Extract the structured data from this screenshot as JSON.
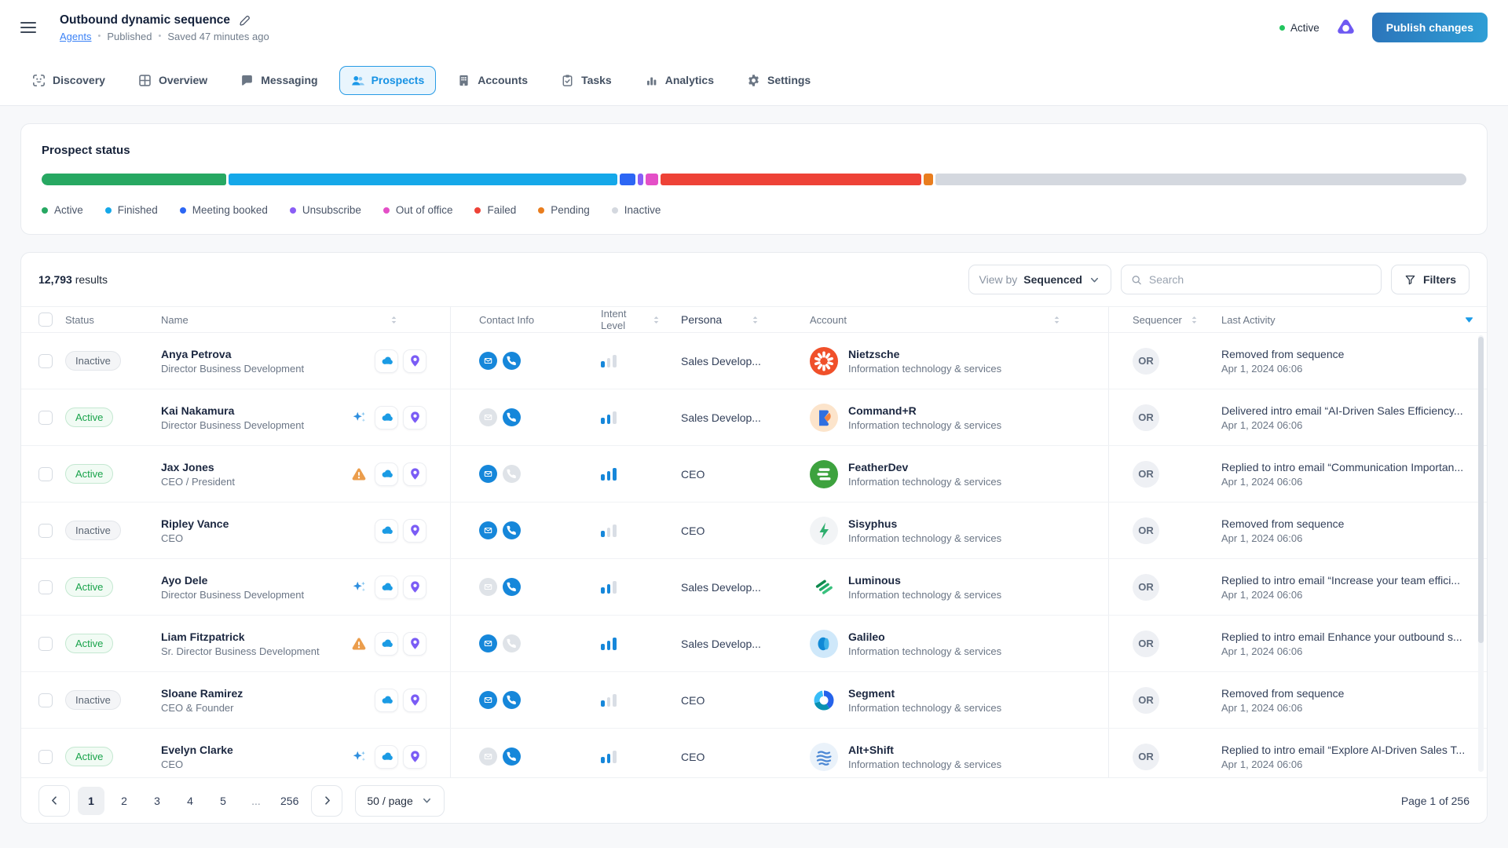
{
  "header": {
    "title": "Outbound dynamic sequence",
    "breadcrumb": {
      "link": "Agents",
      "sep": "•",
      "status": "Published",
      "saved": "Saved 47 minutes ago"
    },
    "agent_status": "Active",
    "publish_label": "Publish changes"
  },
  "tabs": [
    {
      "id": "discovery",
      "label": "Discovery",
      "active": false
    },
    {
      "id": "overview",
      "label": "Overview",
      "active": false
    },
    {
      "id": "messaging",
      "label": "Messaging",
      "active": false
    },
    {
      "id": "prospects",
      "label": "Prospects",
      "active": true
    },
    {
      "id": "accounts",
      "label": "Accounts",
      "active": false
    },
    {
      "id": "tasks",
      "label": "Tasks",
      "active": false
    },
    {
      "id": "analytics",
      "label": "Analytics",
      "active": false
    },
    {
      "id": "settings",
      "label": "Settings",
      "active": false
    }
  ],
  "prospect_status": {
    "title": "Prospect status",
    "segments": [
      {
        "label": "Active",
        "color": "#27a862",
        "pct": 13.0
      },
      {
        "label": "Finished",
        "color": "#15a8e9",
        "pct": 27.3
      },
      {
        "label": "Meeting booked",
        "color": "#2c66f4",
        "pct": 1.1
      },
      {
        "label": "Unsubscribe",
        "color": "#8a5ef5",
        "pct": 0.4
      },
      {
        "label": "Out of office",
        "color": "#e44fc7",
        "pct": 0.9
      },
      {
        "label": "Failed",
        "color": "#ee4237",
        "pct": 18.3
      },
      {
        "label": "Pending",
        "color": "#e97d1e",
        "pct": 0.7
      },
      {
        "label": "Inactive",
        "color": "#d4d8df",
        "pct": 37.3
      }
    ]
  },
  "toolbar": {
    "results_count": "12,793",
    "results_suffix": "results",
    "view_by_label": "View by",
    "view_by_value": "Sequenced",
    "search_placeholder": "Search",
    "filters_label": "Filters"
  },
  "table": {
    "columns": [
      "Status",
      "Name",
      "Contact Info",
      "Intent Level",
      "Persona",
      "Account",
      "Sequencer",
      "Last Activity"
    ],
    "rows": [
      {
        "status": "Inactive",
        "status_variant": "inactive",
        "name": "Anya Petrova",
        "title": "Director Business Development",
        "flag": null,
        "email": true,
        "phone": true,
        "intent": 1,
        "persona": "Sales Develop...",
        "account": {
          "name": "Nietzsche",
          "industry": "Information technology & services",
          "logo": "nietzsche"
        },
        "sequencer": "OR",
        "activity": "Removed from sequence",
        "date": "Apr 1, 2024 06:06"
      },
      {
        "status": "Active",
        "status_variant": "active",
        "name": "Kai Nakamura",
        "title": "Director Business Development",
        "flag": "sparkles",
        "email": false,
        "phone": true,
        "intent": 2,
        "persona": "Sales Develop...",
        "account": {
          "name": "Command+R",
          "industry": "Information technology & services",
          "logo": "commandr"
        },
        "sequencer": "OR",
        "activity": "Delivered intro email “AI-Driven Sales Efficiency...",
        "date": "Apr 1, 2024 06:06"
      },
      {
        "status": "Active",
        "status_variant": "active",
        "name": "Jax Jones",
        "title": "CEO / President",
        "flag": "warning",
        "email": true,
        "phone": false,
        "intent": 3,
        "persona": "CEO",
        "account": {
          "name": "FeatherDev",
          "industry": "Information technology & services",
          "logo": "featherdev"
        },
        "sequencer": "OR",
        "activity": "Replied to intro email “Communication Importan...",
        "date": "Apr 1, 2024 06:06"
      },
      {
        "status": "Inactive",
        "status_variant": "inactive",
        "name": "Ripley Vance",
        "title": "CEO",
        "flag": null,
        "email": true,
        "phone": true,
        "intent": 1,
        "persona": "CEO",
        "account": {
          "name": "Sisyphus",
          "industry": "Information technology & services",
          "logo": "sisyphus"
        },
        "sequencer": "OR",
        "activity": "Removed from sequence",
        "date": "Apr 1, 2024 06:06"
      },
      {
        "status": "Active",
        "status_variant": "active",
        "name": "Ayo Dele",
        "title": "Director Business Development",
        "flag": "sparkles",
        "email": false,
        "phone": true,
        "intent": 2,
        "persona": "Sales Develop...",
        "account": {
          "name": "Luminous",
          "industry": "Information technology & services",
          "logo": "luminous"
        },
        "sequencer": "OR",
        "activity": "Replied to intro email “Increase your team effici...",
        "date": "Apr 1, 2024 06:06"
      },
      {
        "status": "Active",
        "status_variant": "active",
        "name": "Liam Fitzpatrick",
        "title": "Sr. Director Business Development",
        "flag": "warning",
        "email": true,
        "phone": false,
        "intent": 3,
        "persona": "Sales Develop...",
        "account": {
          "name": "Galileo",
          "industry": "Information technology & services",
          "logo": "galileo"
        },
        "sequencer": "OR",
        "activity": "Replied to intro email Enhance your outbound s...",
        "date": "Apr 1, 2024 06:06"
      },
      {
        "status": "Inactive",
        "status_variant": "inactive",
        "name": "Sloane Ramirez",
        "title": "CEO &  Founder",
        "flag": null,
        "email": true,
        "phone": true,
        "intent": 1,
        "persona": "CEO",
        "account": {
          "name": "Segment",
          "industry": "Information technology & services",
          "logo": "segment"
        },
        "sequencer": "OR",
        "activity": "Removed from sequence",
        "date": "Apr 1, 2024 06:06"
      },
      {
        "status": "Active",
        "status_variant": "active",
        "name": "Evelyn Clarke",
        "title": "CEO",
        "flag": "sparkles",
        "email": false,
        "phone": true,
        "intent": 2,
        "persona": "CEO",
        "account": {
          "name": "Alt+Shift",
          "industry": "Information technology & services",
          "logo": "altshift"
        },
        "sequencer": "OR",
        "activity": "Replied to intro email “Explore AI-Driven Sales T...",
        "date": "Apr 1, 2024 06:06"
      }
    ]
  },
  "pagination": {
    "pages": [
      "1",
      "2",
      "3",
      "4",
      "5",
      "...",
      "256"
    ],
    "current": "1",
    "page_size": "50 / page",
    "summary": "Page 1 of 256"
  },
  "colors": {
    "accent_blue": "#1b98e8",
    "publish_gradient": [
      "#2b74ba",
      "#2f9fd6"
    ],
    "active_green": "#22c55e",
    "brand_purple": "#6e59f2",
    "contact_blue": "#1687da",
    "page_bg": "#f7f8fa"
  }
}
